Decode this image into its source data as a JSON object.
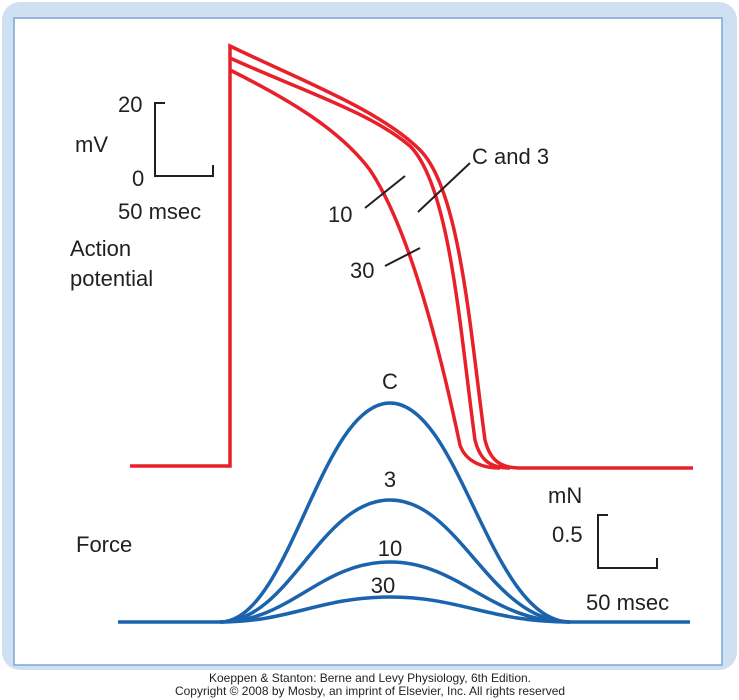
{
  "action_potential": {
    "label_lines": [
      "Action",
      "potential"
    ],
    "scale": {
      "top": "20",
      "unit": "mV",
      "bottom": "0",
      "time": "50 msec"
    },
    "curve_labels": {
      "c_and_3": "C and 3",
      "ten": "10",
      "thirty": "30"
    }
  },
  "force": {
    "label": "Force",
    "scale": {
      "unit": "mN",
      "value": "0.5",
      "time": "50 msec"
    },
    "curve_labels": [
      "C",
      "3",
      "10",
      "30"
    ]
  },
  "footer": {
    "lines": [
      "Koeppen & Stanton: Berne and Levy Physiology, 6th Edition.",
      "Copyright © 2008 by Mosby, an imprint of Elsevier, Inc. All rights reserved"
    ]
  }
}
